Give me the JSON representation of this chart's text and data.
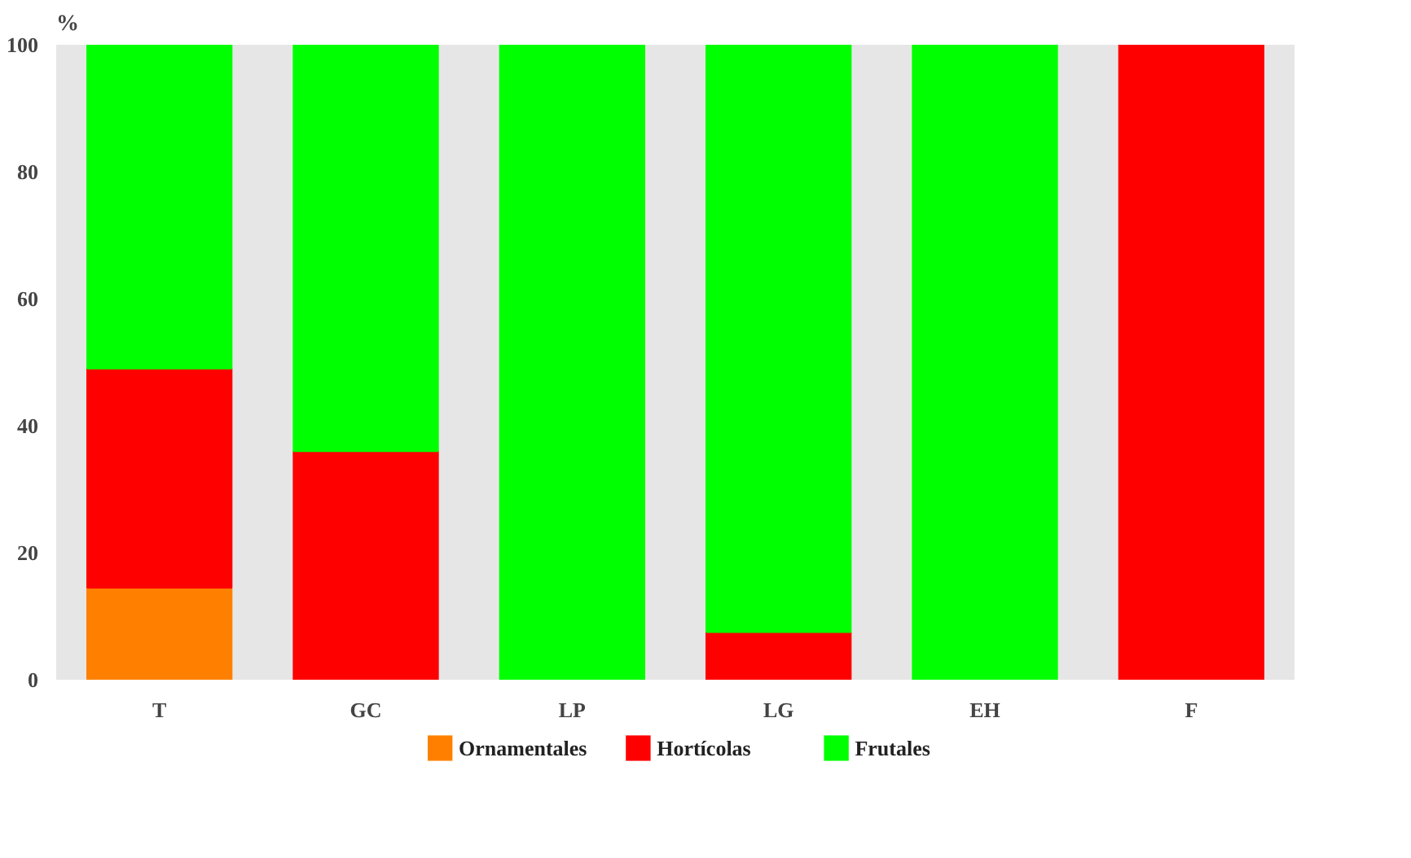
{
  "chart_data": {
    "type": "bar",
    "stacked": true,
    "ylabel": "%",
    "categories": [
      "T",
      "GC",
      "LP",
      "LG",
      "EH",
      "F"
    ],
    "series": [
      {
        "name": "Ornamentales",
        "color": "#ff8000",
        "values": [
          14.5,
          null,
          null,
          null,
          null,
          null
        ]
      },
      {
        "name": "Hortícolas",
        "color": "#ff0000",
        "values": [
          34.5,
          36,
          null,
          7.5,
          null,
          100
        ]
      },
      {
        "name": "Frutales",
        "color": "#00ff00",
        "values": [
          51,
          64,
          100,
          92.5,
          100,
          null
        ]
      }
    ],
    "ylim": [
      0,
      100
    ],
    "yticks": [
      0,
      20,
      40,
      60,
      80,
      100
    ],
    "legend": "bottom"
  }
}
